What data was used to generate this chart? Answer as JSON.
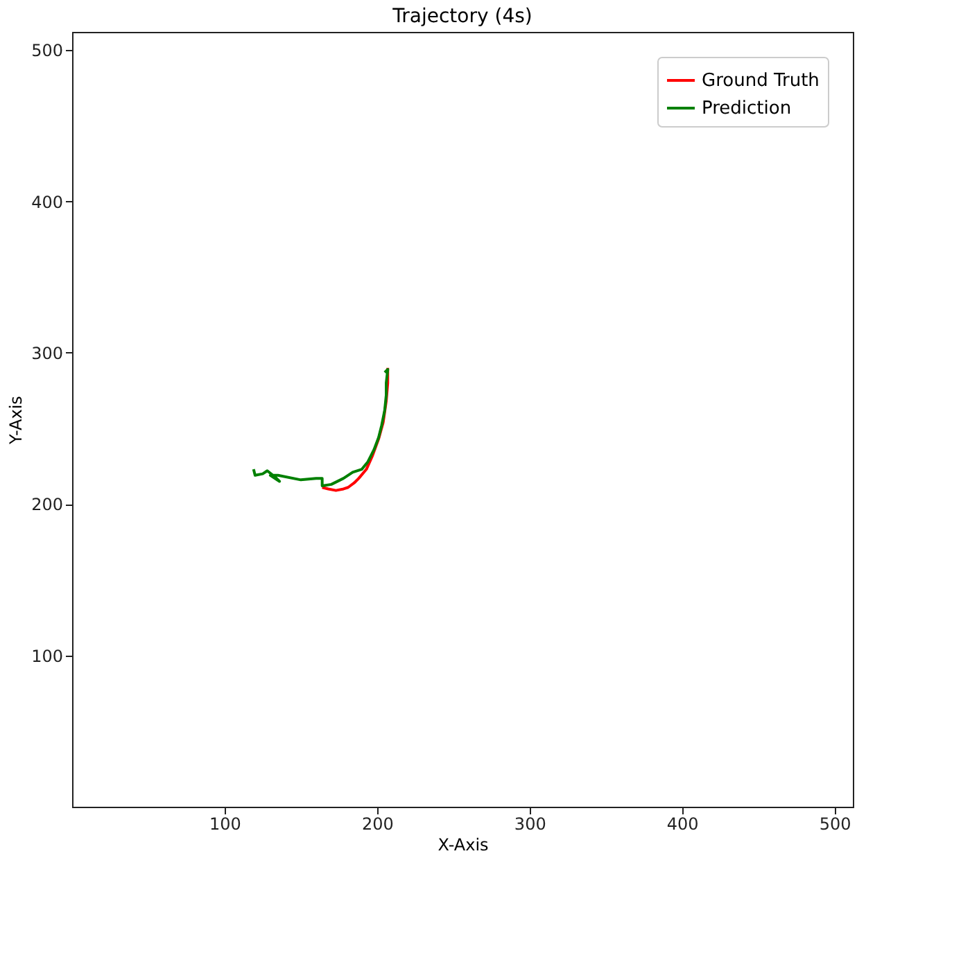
{
  "chart_data": {
    "type": "line",
    "title": "Trajectory (4s)",
    "xlabel": "X-Axis",
    "ylabel": "Y-Axis",
    "xlim": [
      0,
      512
    ],
    "ylim": [
      0,
      512
    ],
    "xticks": [
      100,
      200,
      300,
      400,
      500
    ],
    "yticks": [
      100,
      200,
      300,
      400,
      500
    ],
    "grid": false,
    "legend": "top right",
    "marker": "none",
    "line_style": "solid",
    "series": [
      {
        "name": "Ground Truth",
        "color": "#ff0000",
        "x": [
          164,
          168,
          173,
          178,
          181,
          185,
          188,
          193,
          197,
          201,
          204,
          206,
          207,
          207
        ],
        "values": [
          211,
          210,
          209,
          210,
          211,
          214,
          217,
          223,
          232,
          243,
          254,
          268,
          280,
          290
        ]
      },
      {
        "name": "Prediction",
        "color": "#008000",
        "x": [
          119,
          120,
          125,
          128,
          133,
          136,
          130,
          135,
          150,
          160,
          164,
          164,
          170,
          178,
          184,
          190,
          194,
          198,
          201,
          203,
          205,
          206,
          206,
          207,
          205
        ],
        "values": [
          223,
          219,
          220,
          222,
          218,
          215,
          219,
          219,
          216,
          217,
          217,
          212,
          213,
          217,
          221,
          223,
          228,
          236,
          244,
          252,
          262,
          272,
          280,
          289,
          287
        ]
      }
    ]
  }
}
